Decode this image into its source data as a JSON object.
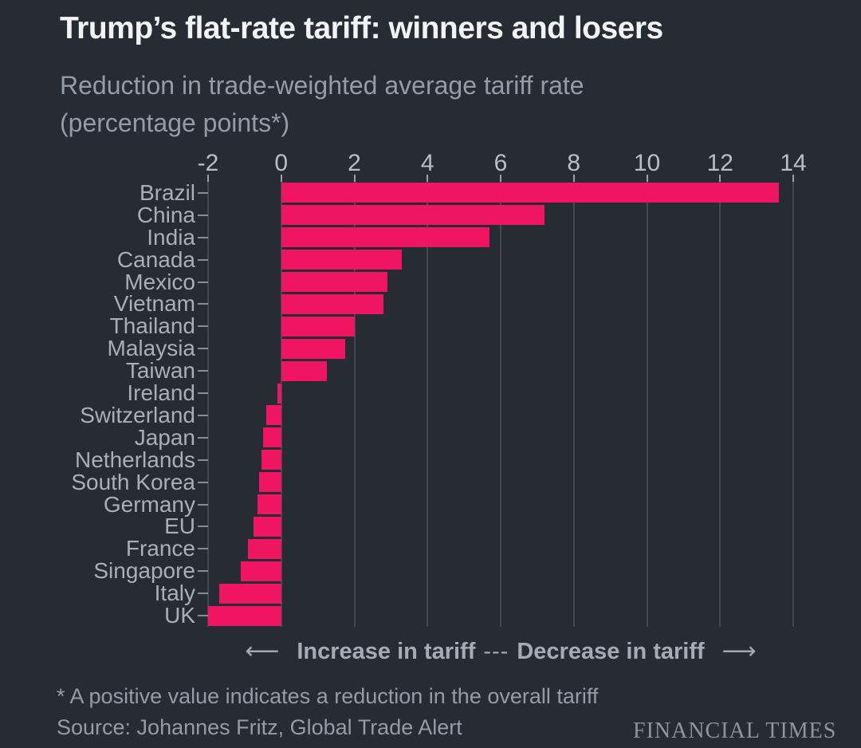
{
  "header": {
    "title": "Trump’s flat-rate tariff: winners and losers",
    "subtitle_line1": "Reduction in trade-weighted average tariff rate",
    "subtitle_line2": "(percentage points*)"
  },
  "chart_data": {
    "type": "bar",
    "orientation": "horizontal",
    "title": "Trump’s flat-rate tariff: winners and losers",
    "subtitle": "Reduction in trade-weighted average tariff rate (percentage points*)",
    "categories": [
      "Brazil",
      "China",
      "India",
      "Canada",
      "Mexico",
      "Vietnam",
      "Thailand",
      "Malaysia",
      "Taiwan",
      "Ireland",
      "Switzerland",
      "Japan",
      "Netherlands",
      "South Korea",
      "Germany",
      "EU",
      "France",
      "Singapore",
      "Italy",
      "UK"
    ],
    "values": [
      13.6,
      7.2,
      5.7,
      3.3,
      2.9,
      2.8,
      2.0,
      1.75,
      1.25,
      -0.1,
      -0.4,
      -0.5,
      -0.55,
      -0.6,
      -0.65,
      -0.75,
      -0.9,
      -1.1,
      -1.7,
      -2.0
    ],
    "xlabel": "",
    "ylabel": "",
    "xlim": [
      -2,
      14
    ],
    "xticks": [
      -2,
      0,
      2,
      4,
      6,
      8,
      10,
      12,
      14
    ],
    "grid": "vertical",
    "legend": "none",
    "bar_color": "#ef1560",
    "background_color": "#262b34"
  },
  "annotation": {
    "left_arrow": "⟵",
    "increase_label": "Increase in tariff",
    "separator": "---",
    "decrease_label": "Decrease in tariff",
    "right_arrow": "⟶"
  },
  "footer": {
    "footnote": "* A positive value indicates a reduction in the overall tariff",
    "source": "Source: Johannes Fritz, Global Trade Alert",
    "brand": "FINANCIAL TIMES"
  },
  "colors": {
    "background": "#262b34",
    "bar": "#ef1560",
    "title_text": "#f2f3f5",
    "subtitle_text": "#949caa",
    "axis_text": "#b9bec8",
    "category_text": "#a9aeb8",
    "gridline": "#424854",
    "footer_text": "#969ca7"
  }
}
